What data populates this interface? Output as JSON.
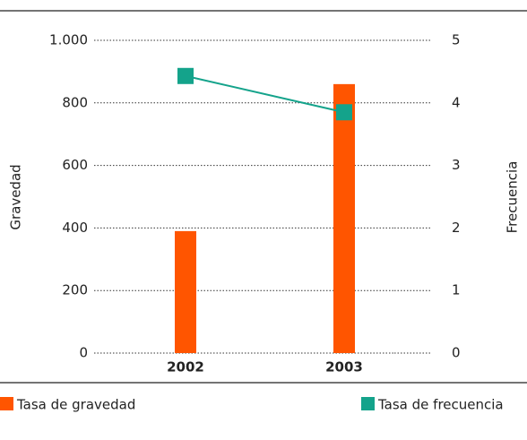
{
  "chart_data": {
    "type": "bar",
    "categories": [
      "2002",
      "2003"
    ],
    "series": [
      {
        "name": "Tasa de gravedad",
        "color": "#ff5500",
        "type": "bar",
        "values": [
          390,
          860
        ]
      },
      {
        "name": "Tasa de frecuencia",
        "color": "#14a38b",
        "type": "line",
        "axis": "y2",
        "values": [
          4.43,
          3.85
        ]
      }
    ],
    "ylabel": "Gravedad",
    "y2label": "Frecuencia",
    "ylim": [
      0,
      1000
    ],
    "yticks": [
      0,
      200,
      400,
      600,
      800,
      {
        "value": 1000,
        "label": "1.000"
      }
    ],
    "y2lim": [
      0,
      5
    ],
    "y2ticks": [
      0,
      1,
      2,
      3,
      4,
      5
    ],
    "grid": true,
    "legend": "bottom"
  }
}
